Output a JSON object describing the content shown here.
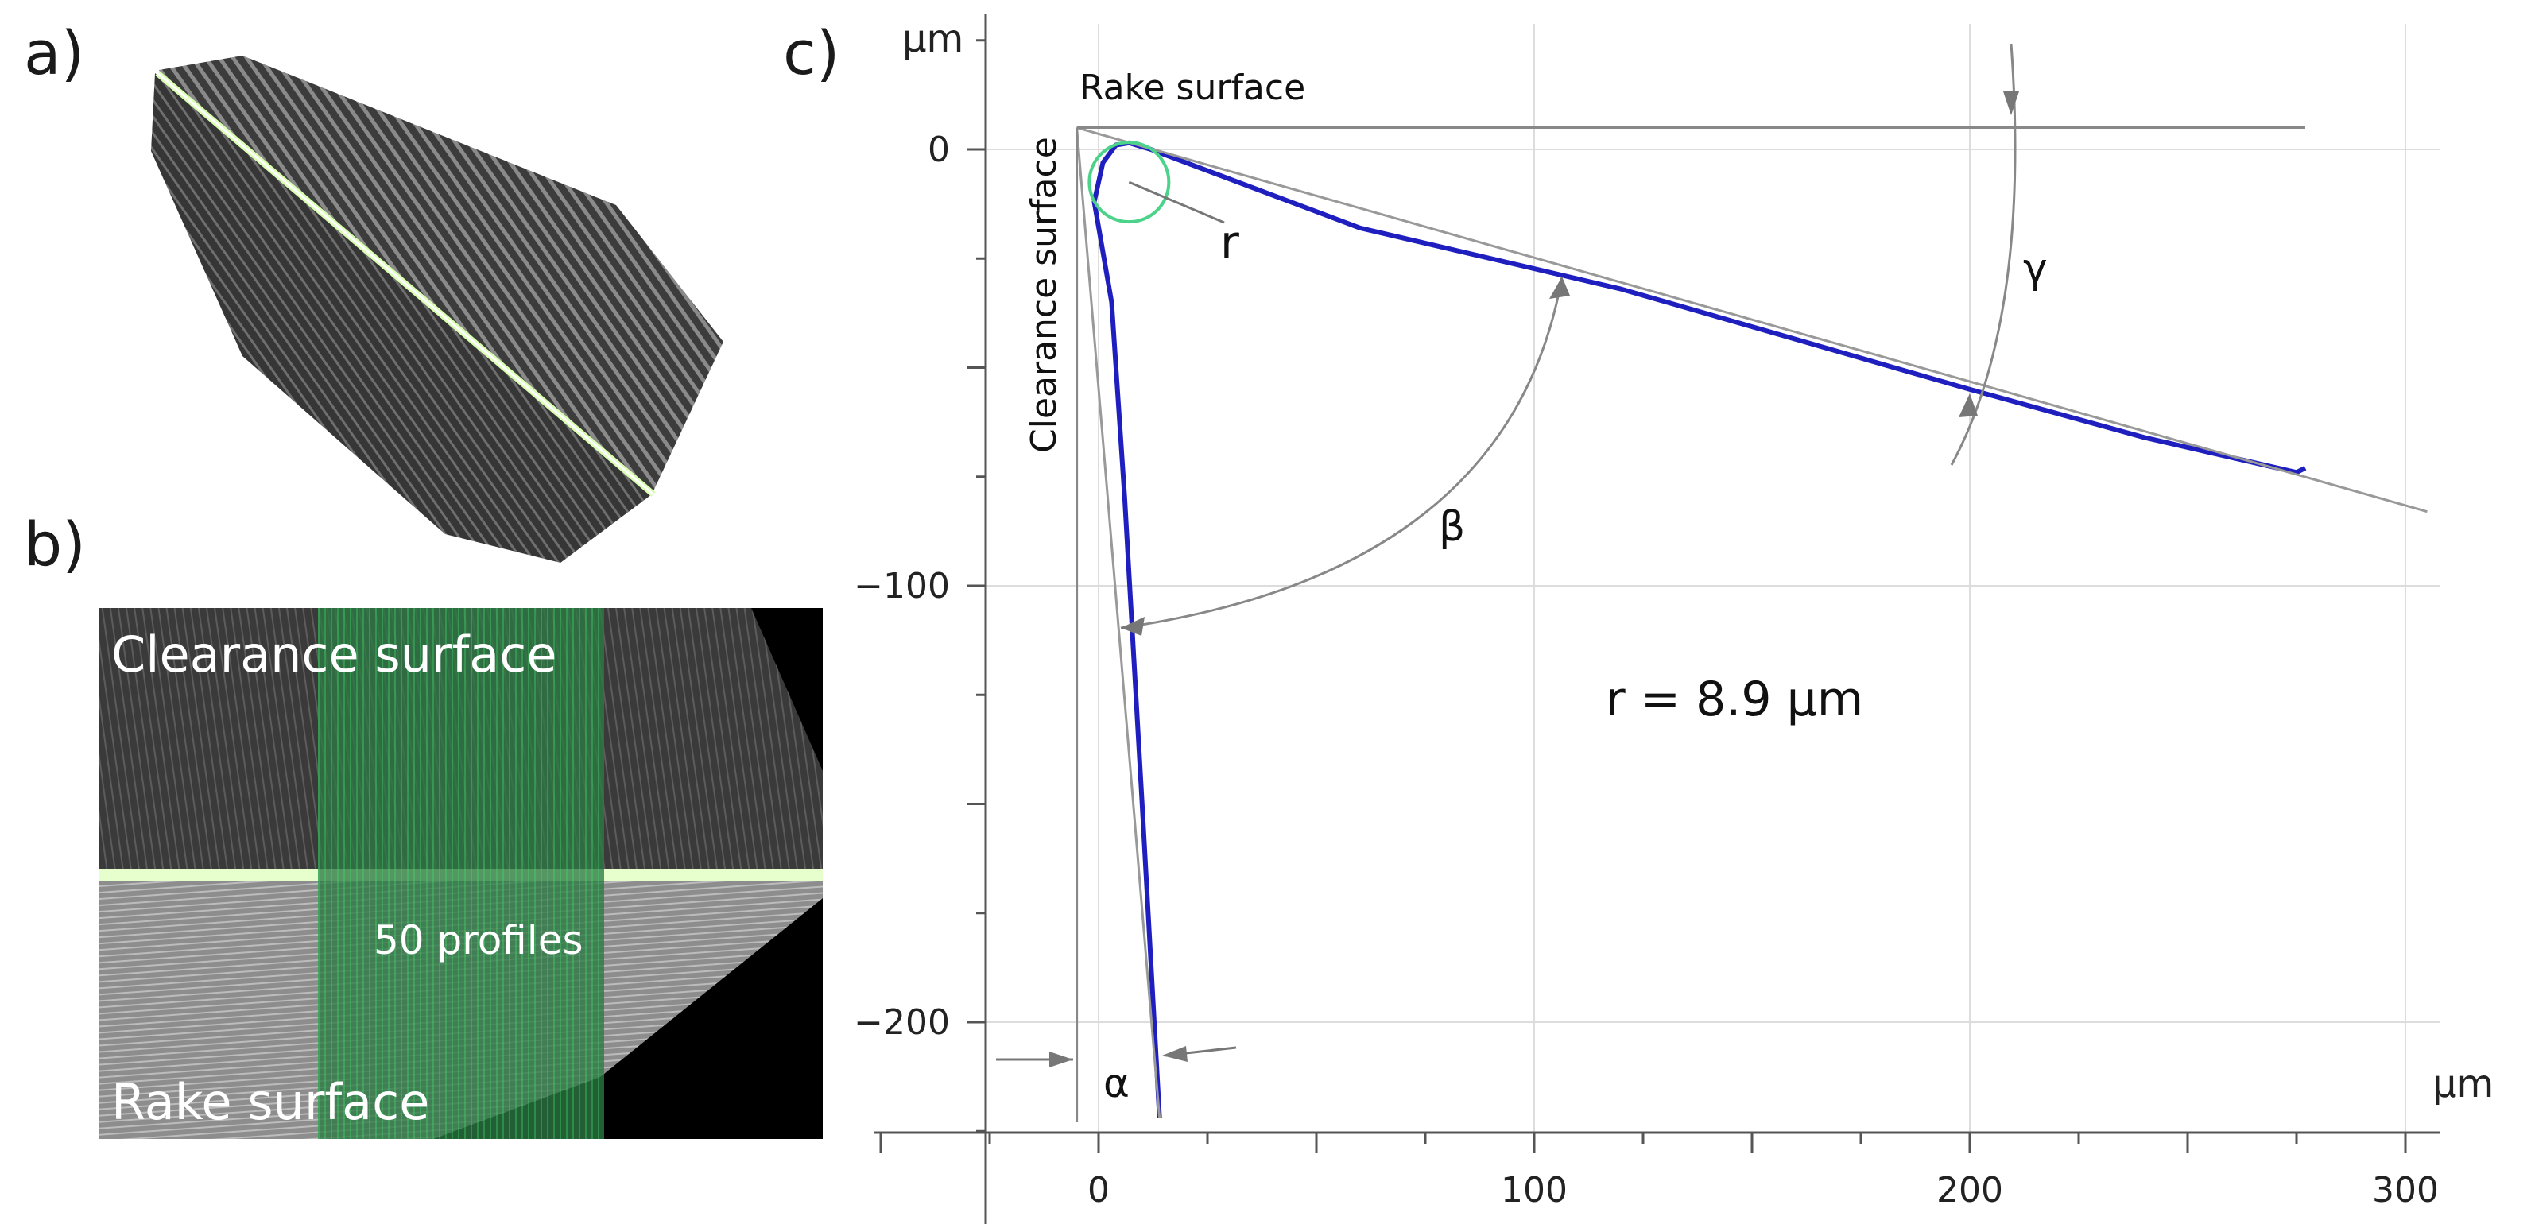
{
  "panels": {
    "a": "a)",
    "b": "b)",
    "c": "c)"
  },
  "panel_b": {
    "clearance_label": "Clearance surface",
    "profiles_label": "50 profiles",
    "rake_label": "Rake surface"
  },
  "chart_data": {
    "type": "line",
    "title": "",
    "x_unit": "µm",
    "y_unit": "µm",
    "xlim": [
      -25,
      305
    ],
    "ylim": [
      -225,
      30
    ],
    "x_ticks": [
      0,
      100,
      200,
      300
    ],
    "x_tick_labels": [
      "0",
      "100",
      "200",
      "300"
    ],
    "y_ticks": [
      0,
      -100,
      -200
    ],
    "y_tick_labels": [
      "0",
      "−100",
      "−200"
    ],
    "grid": true,
    "annotations": {
      "rake_surface": "Rake surface",
      "clearance_surface": "Clearance surface",
      "radius_symbol": "r",
      "radius_text": "r = 8.9 µm",
      "alpha": "α",
      "beta": "β",
      "gamma": "γ"
    },
    "edge_radius_um": 8.9,
    "series": [
      {
        "name": "measured profile",
        "color": "#1f1fbf",
        "points": [
          [
            14,
            -222
          ],
          [
            10,
            -150
          ],
          [
            6,
            -80
          ],
          [
            3,
            -35
          ],
          [
            -1,
            -12
          ],
          [
            1,
            -3
          ],
          [
            4,
            1
          ],
          [
            7,
            1.5
          ],
          [
            12,
            0
          ],
          [
            60,
            -18
          ],
          [
            120,
            -32
          ],
          [
            200,
            -55
          ],
          [
            240,
            -66
          ],
          [
            275,
            -74
          ],
          [
            277,
            -73
          ]
        ]
      },
      {
        "name": "rake reference line",
        "color": "#999999",
        "points": [
          [
            -5,
            5
          ],
          [
            305,
            -83
          ]
        ]
      },
      {
        "name": "clearance reference line",
        "color": "#999999",
        "points": [
          [
            -5,
            5
          ],
          [
            14,
            -222
          ]
        ]
      }
    ]
  }
}
